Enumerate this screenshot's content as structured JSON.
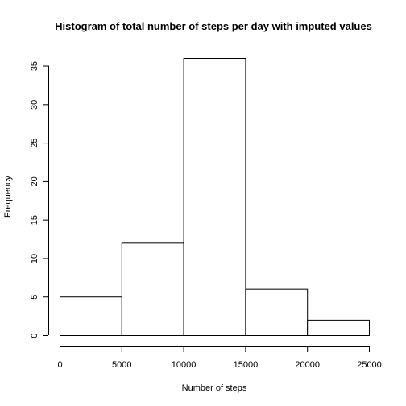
{
  "chart_data": {
    "type": "bar",
    "title": "Histogram of total number of steps per day with imputed values",
    "xlabel": "Number of steps",
    "ylabel": "Frequency",
    "bins": [
      {
        "start": 0,
        "end": 5000,
        "value": 5
      },
      {
        "start": 5000,
        "end": 10000,
        "value": 12
      },
      {
        "start": 10000,
        "end": 15000,
        "value": 36
      },
      {
        "start": 15000,
        "end": 20000,
        "value": 6
      },
      {
        "start": 20000,
        "end": 25000,
        "value": 2
      }
    ],
    "xlim": [
      0,
      25000
    ],
    "ylim": [
      0,
      36
    ],
    "x_ticks": [
      0,
      5000,
      10000,
      15000,
      20000,
      25000
    ],
    "x_tick_labels": [
      "0",
      "5000",
      "10000",
      "15000",
      "20000",
      "25000"
    ],
    "y_ticks": [
      0,
      5,
      10,
      15,
      20,
      25,
      30,
      35
    ],
    "y_tick_labels": [
      "0",
      "5",
      "10",
      "15",
      "20",
      "25",
      "30",
      "35"
    ],
    "grid": false,
    "legend": "none",
    "colors": {
      "bar_fill": "#ffffff",
      "bar_stroke": "#000000",
      "background": "#ffffff"
    }
  }
}
